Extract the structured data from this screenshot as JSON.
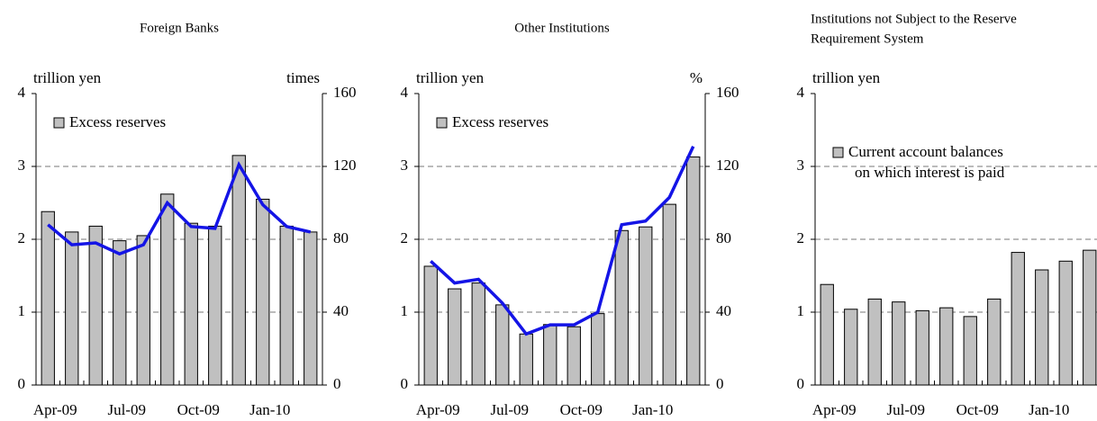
{
  "chart_data": [
    {
      "type": "bar",
      "title": [
        "Foreign Banks"
      ],
      "y_label": "trillion yen",
      "y2_label": "times",
      "categories": [
        "Apr-09",
        null,
        null,
        "Jul-09",
        null,
        null,
        "Oct-09",
        null,
        null,
        "Jan-10",
        null,
        null
      ],
      "series": [
        {
          "name": [
            "Excess reserves"
          ],
          "color": "#c0c0c0",
          "values": [
            2.38,
            2.1,
            2.18,
            1.98,
            2.05,
            2.62,
            2.22,
            2.18,
            3.15,
            2.55,
            2.18,
            2.1
          ]
        },
        {
          "type": "line",
          "axis": "y2",
          "color": "#1414e6",
          "values": [
            88,
            77,
            78,
            72,
            77,
            100,
            87,
            86,
            121,
            99,
            87,
            84
          ]
        }
      ],
      "ylim": [
        0,
        4
      ],
      "yticks": [
        0,
        1,
        2,
        3,
        4
      ],
      "y2lim": [
        0,
        160
      ],
      "y2ticks": [
        0,
        40,
        80,
        120,
        160
      ],
      "grid": true
    },
    {
      "type": "bar",
      "title": [
        "Other Institutions"
      ],
      "y_label": "trillion yen",
      "y2_label": "%",
      "categories": [
        "Apr-09",
        null,
        null,
        "Jul-09",
        null,
        null,
        "Oct-09",
        null,
        null,
        "Jan-10",
        null,
        null
      ],
      "series": [
        {
          "name": [
            "Excess reserves"
          ],
          "color": "#c0c0c0",
          "values": [
            1.63,
            1.32,
            1.4,
            1.1,
            0.7,
            0.83,
            0.8,
            0.98,
            2.12,
            2.17,
            2.48,
            3.13
          ]
        },
        {
          "type": "line",
          "axis": "y2",
          "color": "#1414e6",
          "values": [
            68,
            56,
            58,
            45,
            28,
            33,
            33,
            40,
            88,
            90,
            103,
            131
          ]
        }
      ],
      "ylim": [
        0,
        4
      ],
      "yticks": [
        0,
        1,
        2,
        3,
        4
      ],
      "y2lim": [
        0,
        160
      ],
      "y2ticks": [
        0,
        40,
        80,
        120,
        160
      ],
      "grid": true
    },
    {
      "type": "bar",
      "title": [
        "Institutions not Subject to the Reserve",
        "Requirement System"
      ],
      "y_label": "trillion yen",
      "categories": [
        "Apr-09",
        null,
        null,
        "Jul-09",
        null,
        null,
        "Oct-09",
        null,
        null,
        "Jan-10",
        null,
        null
      ],
      "series": [
        {
          "name": [
            "Current account balances",
            "on which interest is paid"
          ],
          "color": "#c0c0c0",
          "values": [
            1.38,
            1.04,
            1.18,
            1.14,
            1.02,
            1.06,
            0.94,
            1.18,
            1.82,
            1.58,
            1.7,
            1.85
          ]
        }
      ],
      "ylim": [
        0,
        4
      ],
      "yticks": [
        0,
        1,
        2,
        3,
        4
      ],
      "grid": true
    }
  ]
}
